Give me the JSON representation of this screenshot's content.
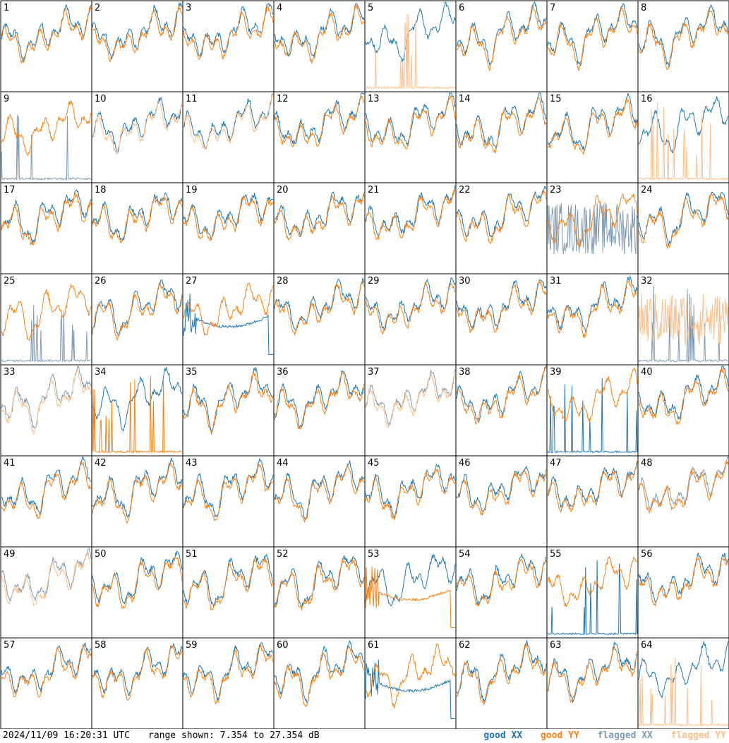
{
  "chart_data": {
    "type": "line",
    "layout": "grid-8x8-small-multiples",
    "panel_labels": [
      "1",
      "2",
      "3",
      "4",
      "5",
      "6",
      "7",
      "8",
      "9",
      "10",
      "11",
      "12",
      "13",
      "14",
      "15",
      "16",
      "17",
      "18",
      "19",
      "20",
      "21",
      "22",
      "23",
      "24",
      "25",
      "26",
      "27",
      "28",
      "29",
      "30",
      "31",
      "32",
      "33",
      "34",
      "35",
      "36",
      "37",
      "38",
      "39",
      "40",
      "41",
      "42",
      "43",
      "44",
      "45",
      "46",
      "47",
      "48",
      "49",
      "50",
      "51",
      "52",
      "53",
      "54",
      "55",
      "56",
      "57",
      "58",
      "59",
      "60",
      "61",
      "62",
      "63",
      "64"
    ],
    "y_range_db": [
      7.354,
      27.354
    ],
    "series": [
      {
        "name": "good XX",
        "color": "#1f77b4"
      },
      {
        "name": "good YY",
        "color": "#ff7f0e"
      },
      {
        "name": "flagged XX",
        "color": "#7f9bb5"
      },
      {
        "name": "flagged YY",
        "color": "#ffbf8a"
      }
    ],
    "panels": {
      "5": {
        "yy": "flagged",
        "yy_mode": "spike"
      },
      "9": {
        "xx": "flagged",
        "xx_mode": "spike"
      },
      "10": {
        "yy": "flagged"
      },
      "11": {
        "yy": "flagged"
      },
      "16": {
        "yy": "flagged",
        "yy_mode": "spike"
      },
      "23": {
        "xx": "flagged",
        "xx_mode": "noisy"
      },
      "25": {
        "xx": "flagged",
        "xx_mode": "spike"
      },
      "27": {
        "xx_mode": "broken"
      },
      "32": {
        "xx": "flagged",
        "yy": "flagged",
        "xx_mode": "spike",
        "yy_mode": "noisy"
      },
      "33": {
        "xx": "flagged",
        "yy": "flagged"
      },
      "34": {
        "yy_mode": "spike"
      },
      "37": {
        "xx": "flagged",
        "yy": "flagged"
      },
      "39": {
        "xx_mode": "spike"
      },
      "48": {
        "xx": "flagged"
      },
      "49": {
        "xx": "flagged",
        "yy": "flagged"
      },
      "53": {
        "yy_mode": "broken"
      },
      "55": {
        "xx_mode": "spike"
      },
      "61": {
        "xx_mode": "broken"
      },
      "64": {
        "yy": "flagged",
        "yy_mode": "spike"
      }
    }
  },
  "footer": {
    "timestamp": "2024/11/09 16:20:31 UTC",
    "range_text": "range shown: 7.354 to 27.354 dB",
    "legend": {
      "good_xx": "good XX",
      "good_yy": "good YY",
      "flagged_xx": "flagged XX",
      "flagged_yy": "flagged YY"
    }
  }
}
